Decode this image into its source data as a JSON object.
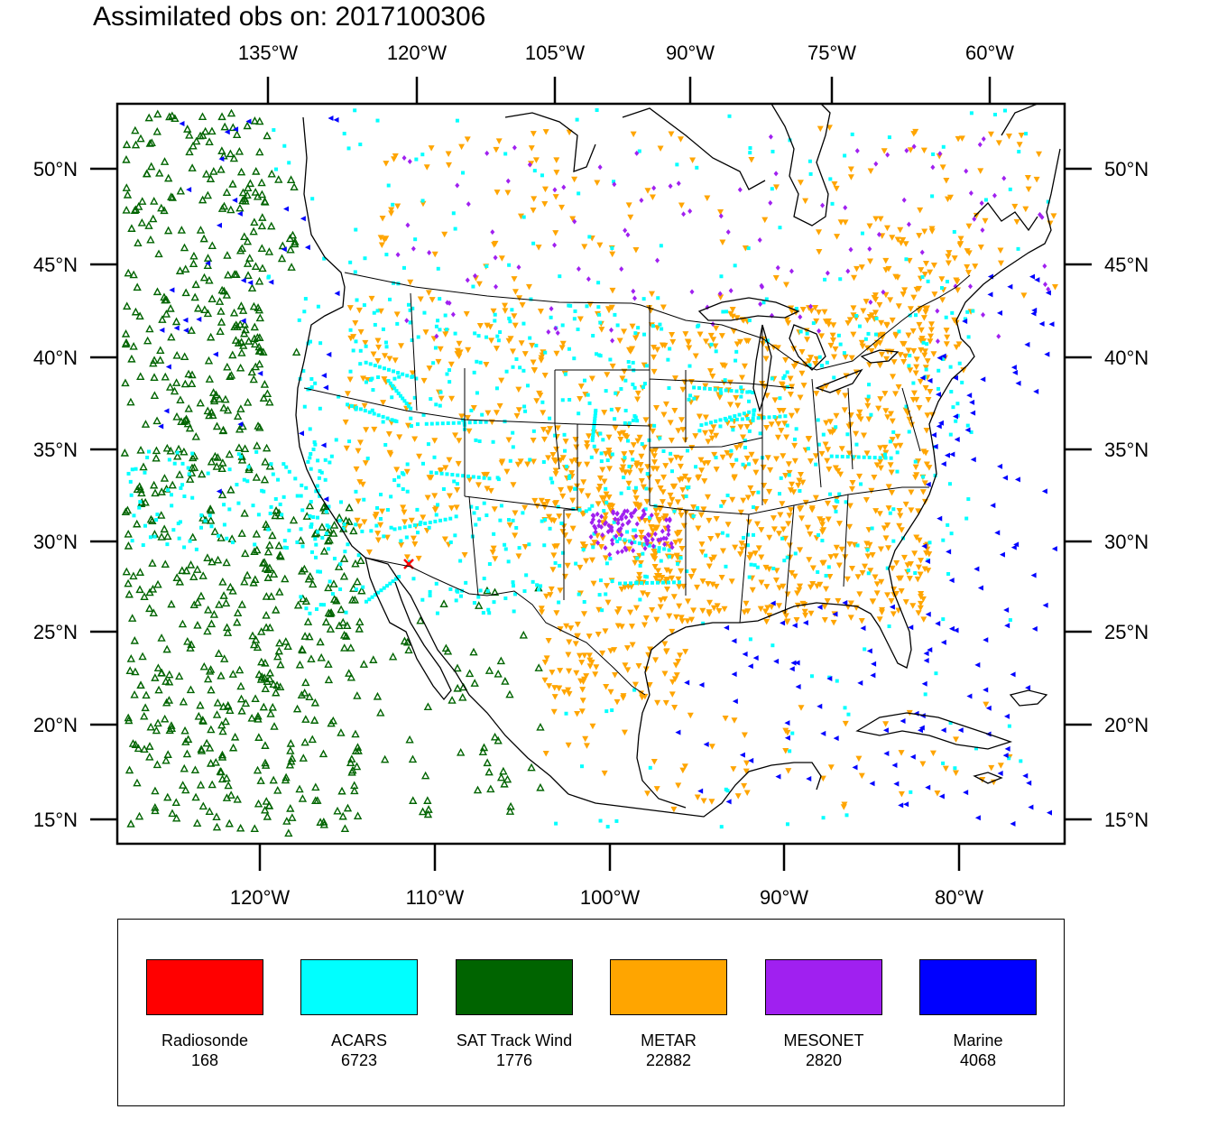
{
  "title": "Assimilated obs on: 2017100306",
  "map": {
    "top_lon_labels": [
      "135°W",
      "120°W",
      "105°W",
      "90°W",
      "75°W",
      "60°W"
    ],
    "bottom_lon_labels": [
      "120°W",
      "110°W",
      "100°W",
      "90°W",
      "80°W"
    ],
    "lat_labels": [
      "50°N",
      "45°N",
      "40°N",
      "35°N",
      "30°N",
      "25°N",
      "20°N",
      "15°N"
    ]
  },
  "legend": {
    "items": [
      {
        "name": "Radiosonde",
        "count": "168",
        "color": "#ff0000",
        "marker": "x-mark"
      },
      {
        "name": "ACARS",
        "count": "6723",
        "color": "#00ffff",
        "marker": "square"
      },
      {
        "name": "SAT Track Wind",
        "count": "1776",
        "color": "#006400",
        "marker": "triangle-up-open"
      },
      {
        "name": "METAR",
        "count": "22882",
        "color": "#ffa500",
        "marker": "triangle-down"
      },
      {
        "name": "MESONET",
        "count": "2820",
        "color": "#a020f0",
        "marker": "diamond"
      },
      {
        "name": "Marine",
        "count": "4068",
        "color": "#0000ff",
        "marker": "triangle-left"
      }
    ]
  }
}
